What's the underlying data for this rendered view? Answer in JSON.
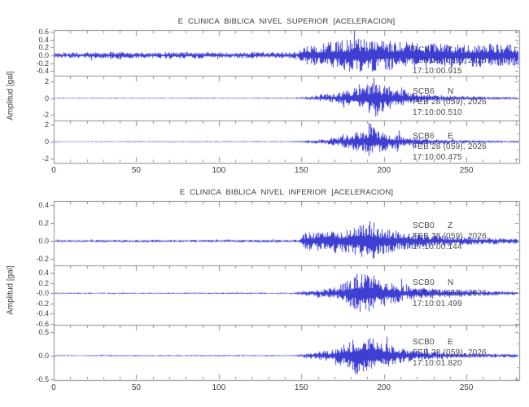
{
  "colors": {
    "waveform": "#2e2ecf",
    "axis": "#8c8c8c",
    "text": "#464646",
    "background": "#ffffff"
  },
  "panels": [
    {
      "title": "E CLINICA BIBLICA NIVEL SUPERIOR [ACELERACION]",
      "ylabel": "Amplitud [gal]",
      "xtick_labels": [
        "0",
        "50",
        "100",
        "150",
        "200",
        "250"
      ],
      "traces": [
        {
          "station": "SCB6",
          "component": "Z",
          "date_line": "FEB 28 (059), 2026",
          "time_line": "17:10:00.915",
          "ytick_labels": [
            "0.6",
            "0.4",
            "0.2",
            "0.0",
            "-0.2",
            "-0.4"
          ]
        },
        {
          "station": "SCB6",
          "component": "N",
          "date_line": "FEB 28 (059), 2026",
          "time_line": "17:10:00.510",
          "ytick_labels": [
            "2",
            "0",
            "-2"
          ]
        },
        {
          "station": "SCB6",
          "component": "E",
          "date_line": "FEB 28 (059), 2026",
          "time_line": "17:10:00.475",
          "ytick_labels": [
            "2",
            "0",
            "-2"
          ]
        }
      ]
    },
    {
      "title": "E CLINICA BIBLICA NIVEL INFERIOR [ACELERACION]",
      "ylabel": "Amplitud [gal]",
      "xtick_labels": [
        "0",
        "50",
        "100",
        "150",
        "200",
        "250"
      ],
      "traces": [
        {
          "station": "SCB0",
          "component": "Z",
          "date_line": "FEB 28 (059), 2026",
          "time_line": "17:10:00.144",
          "ytick_labels": [
            "0.4",
            "0.2",
            "0.0",
            "-0.2"
          ]
        },
        {
          "station": "SCB0",
          "component": "N",
          "date_line": "FEB 28 (059), 2026",
          "time_line": "17:10:01.499",
          "ytick_labels": [
            "0.4",
            "0.2",
            "-0.0",
            "-0.2",
            "-0.4",
            "-0.6"
          ]
        },
        {
          "station": "SCB0",
          "component": "E",
          "date_line": "FEB 28 (059), 2026",
          "time_line": "17:10:01.820",
          "ytick_labels": [
            "0.5",
            "0.0",
            "-0.5"
          ]
        }
      ]
    }
  ],
  "chart_data": [
    {
      "type": "line",
      "subtype": "seismogram",
      "title": "E CLINICA BIBLICA NIVEL SUPERIOR [ACELERACION]",
      "ylabel": "Amplitud [gal]",
      "x_range": [
        0,
        282
      ],
      "xticks": [
        0,
        50,
        100,
        150,
        200,
        250
      ],
      "xtick_minor_step": 10,
      "grid": false,
      "series": [
        {
          "name": "SCB6 Z",
          "units": "gal",
          "start_time": "17:10:00.915",
          "date": "FEB 28 (059), 2026",
          "yticks": [
            0.6,
            0.4,
            0.2,
            0.0,
            -0.2,
            -0.4
          ],
          "ylim": [
            -0.52,
            0.64
          ],
          "seed": 11,
          "envelope": [
            [
              0,
              0.07
            ],
            [
              22,
              0.08
            ],
            [
              25,
              0.13
            ],
            [
              28,
              0.08
            ],
            [
              40,
              0.1
            ],
            [
              45,
              0.08
            ],
            [
              60,
              0.07
            ],
            [
              73,
              0.1
            ],
            [
              78,
              0.08
            ],
            [
              95,
              0.08
            ],
            [
              110,
              0.07
            ],
            [
              122,
              0.09
            ],
            [
              135,
              0.08
            ],
            [
              148,
              0.09
            ],
            [
              152,
              0.27
            ],
            [
              160,
              0.3
            ],
            [
              170,
              0.36
            ],
            [
              180,
              0.42
            ],
            [
              190,
              0.44
            ],
            [
              200,
              0.38
            ],
            [
              212,
              0.34
            ],
            [
              225,
              0.31
            ],
            [
              240,
              0.3
            ],
            [
              255,
              0.29
            ],
            [
              268,
              0.3
            ],
            [
              282,
              0.27
            ]
          ]
        },
        {
          "name": "SCB6 N",
          "units": "gal",
          "start_time": "17:10:00.510",
          "date": "FEB 28 (059), 2026",
          "yticks": [
            2,
            0,
            -2
          ],
          "ylim": [
            -2.62,
            2.62
          ],
          "seed": 22,
          "envelope": [
            [
              0,
              0.05
            ],
            [
              140,
              0.06
            ],
            [
              150,
              0.12
            ],
            [
              158,
              0.28
            ],
            [
              165,
              0.5
            ],
            [
              170,
              0.55
            ],
            [
              176,
              0.85
            ],
            [
              181,
              1.2
            ],
            [
              185,
              1.7
            ],
            [
              188,
              1.3
            ],
            [
              191,
              2.2
            ],
            [
              194,
              2.45
            ],
            [
              197,
              1.7
            ],
            [
              201,
              1.5
            ],
            [
              205,
              1.2
            ],
            [
              209,
              1.45
            ],
            [
              213,
              0.95
            ],
            [
              218,
              0.7
            ],
            [
              225,
              0.5
            ],
            [
              233,
              0.38
            ],
            [
              243,
              0.28
            ],
            [
              255,
              0.2
            ],
            [
              268,
              0.16
            ],
            [
              282,
              0.14
            ]
          ]
        },
        {
          "name": "SCB6 E",
          "units": "gal",
          "start_time": "17:10:00.475",
          "date": "FEB 28 (059), 2026",
          "yticks": [
            2,
            0,
            -2
          ],
          "ylim": [
            -2.5,
            2.5
          ],
          "seed": 33,
          "envelope": [
            [
              0,
              0.05
            ],
            [
              140,
              0.06
            ],
            [
              150,
              0.1
            ],
            [
              158,
              0.22
            ],
            [
              166,
              0.38
            ],
            [
              173,
              0.55
            ],
            [
              179,
              0.9
            ],
            [
              184,
              1.35
            ],
            [
              188,
              1.1
            ],
            [
              191,
              2.4
            ],
            [
              194,
              1.6
            ],
            [
              198,
              1.2
            ],
            [
              203,
              0.95
            ],
            [
              208,
              0.85
            ],
            [
              214,
              0.6
            ],
            [
              220,
              0.45
            ],
            [
              228,
              0.35
            ],
            [
              238,
              0.26
            ],
            [
              250,
              0.19
            ],
            [
              265,
              0.14
            ],
            [
              282,
              0.11
            ]
          ]
        }
      ]
    },
    {
      "type": "line",
      "subtype": "seismogram",
      "title": "E CLINICA BIBLICA NIVEL INFERIOR [ACELERACION]",
      "ylabel": "Amplitud [gal]",
      "x_range": [
        0,
        282
      ],
      "xticks": [
        0,
        50,
        100,
        150,
        200,
        250
      ],
      "xtick_minor_step": 10,
      "grid": false,
      "series": [
        {
          "name": "SCB0 Z",
          "units": "gal",
          "start_time": "17:10:00.144",
          "date": "FEB 28 (059), 2026",
          "yticks": [
            0.4,
            0.2,
            0.0,
            -0.2
          ],
          "ylim": [
            -0.27,
            0.445
          ],
          "seed": 44,
          "envelope": [
            [
              0,
              0.012
            ],
            [
              148,
              0.014
            ],
            [
              152,
              0.09
            ],
            [
              157,
              0.12
            ],
            [
              163,
              0.11
            ],
            [
              169,
              0.13
            ],
            [
              176,
              0.15
            ],
            [
              182,
              0.17
            ],
            [
              187,
              0.2
            ],
            [
              190,
              0.27
            ],
            [
              193,
              0.21
            ],
            [
              198,
              0.16
            ],
            [
              204,
              0.13
            ],
            [
              211,
              0.1
            ],
            [
              219,
              0.085
            ],
            [
              229,
              0.068
            ],
            [
              241,
              0.055
            ],
            [
              256,
              0.042
            ],
            [
              282,
              0.03
            ]
          ]
        },
        {
          "name": "SCB0 N",
          "units": "gal",
          "start_time": "17:10:01.499",
          "date": "FEB 28 (059), 2026",
          "yticks": [
            0.4,
            0.2,
            -0.0,
            -0.2,
            -0.4,
            -0.6
          ],
          "ylim": [
            -0.62,
            0.55
          ],
          "seed": 55,
          "envelope": [
            [
              0,
              0.012
            ],
            [
              145,
              0.014
            ],
            [
              151,
              0.05
            ],
            [
              159,
              0.07
            ],
            [
              166,
              0.1
            ],
            [
              171,
              0.13
            ],
            [
              176,
              0.22
            ],
            [
              180,
              0.32
            ],
            [
              184,
              0.44
            ],
            [
              187,
              0.38
            ],
            [
              190,
              0.46
            ],
            [
              193,
              0.36
            ],
            [
              197,
              0.3
            ],
            [
              201,
              0.27
            ],
            [
              206,
              0.21
            ],
            [
              212,
              0.16
            ],
            [
              219,
              0.12
            ],
            [
              228,
              0.095
            ],
            [
              240,
              0.07
            ],
            [
              253,
              0.052
            ],
            [
              268,
              0.042
            ],
            [
              282,
              0.035
            ]
          ]
        },
        {
          "name": "SCB0 E",
          "units": "gal",
          "start_time": "17:10:01.820",
          "date": "FEB 28 (059), 2026",
          "yticks": [
            0.5,
            0.0,
            -0.5
          ],
          "ylim": [
            -0.52,
            0.655
          ],
          "seed": 66,
          "envelope": [
            [
              0,
              0.012
            ],
            [
              146,
              0.014
            ],
            [
              153,
              0.06
            ],
            [
              161,
              0.09
            ],
            [
              169,
              0.13
            ],
            [
              175,
              0.24
            ],
            [
              180,
              0.33
            ],
            [
              184,
              0.44
            ],
            [
              188,
              0.4
            ],
            [
              191,
              0.46
            ],
            [
              195,
              0.32
            ],
            [
              200,
              0.26
            ],
            [
              206,
              0.2
            ],
            [
              212,
              0.15
            ],
            [
              220,
              0.11
            ],
            [
              230,
              0.082
            ],
            [
              242,
              0.062
            ],
            [
              257,
              0.046
            ],
            [
              282,
              0.036
            ]
          ]
        }
      ]
    }
  ]
}
